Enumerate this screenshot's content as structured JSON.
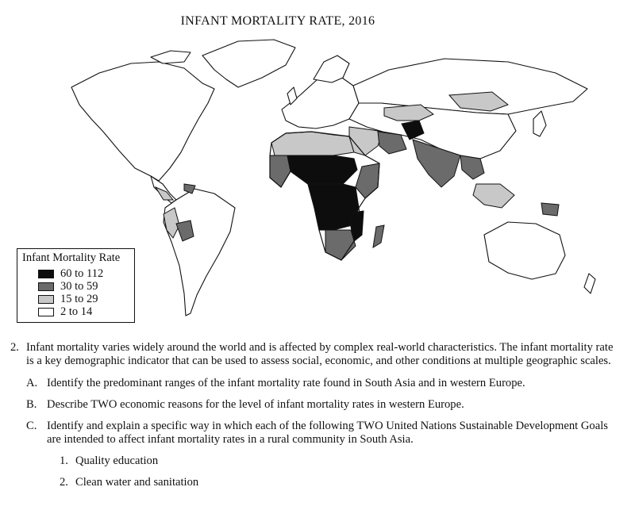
{
  "map": {
    "title": "INFANT MORTALITY RATE, 2016",
    "colors": {
      "high": "#0d0d0d",
      "mid": "#6b6b6b",
      "low": "#c8c8c8",
      "lowest": "#ffffff",
      "outline": "#111111"
    }
  },
  "legend": {
    "title": "Infant Mortality Rate",
    "items": [
      {
        "label": "60 to 112",
        "color": "#0d0d0d"
      },
      {
        "label": "30 to 59",
        "color": "#6b6b6b"
      },
      {
        "label": "15 to 29",
        "color": "#c8c8c8"
      },
      {
        "label": "2 to 14",
        "color": "#ffffff"
      }
    ]
  },
  "question": {
    "number": "2.",
    "text": "Infant mortality varies widely around the world and is affected by complex real-world characteristics. The infant mortality rate is a key demographic indicator that can be used to assess social, economic, and other conditions at multiple geographic scales.",
    "parts": [
      {
        "letter": "A.",
        "text": "Identify the predominant ranges of the infant mortality rate found in South Asia and in western Europe."
      },
      {
        "letter": "B.",
        "text": "Describe TWO economic reasons for the level of infant mortality rates in western Europe."
      },
      {
        "letter": "C.",
        "text": "Identify and explain a specific way in which each of the following TWO United Nations Sustainable Development Goals are intended to affect infant mortality rates in a rural community in South Asia."
      }
    ],
    "subitems": [
      {
        "number": "1.",
        "text": "Quality education"
      },
      {
        "number": "2.",
        "text": "Clean water and sanitation"
      }
    ]
  }
}
